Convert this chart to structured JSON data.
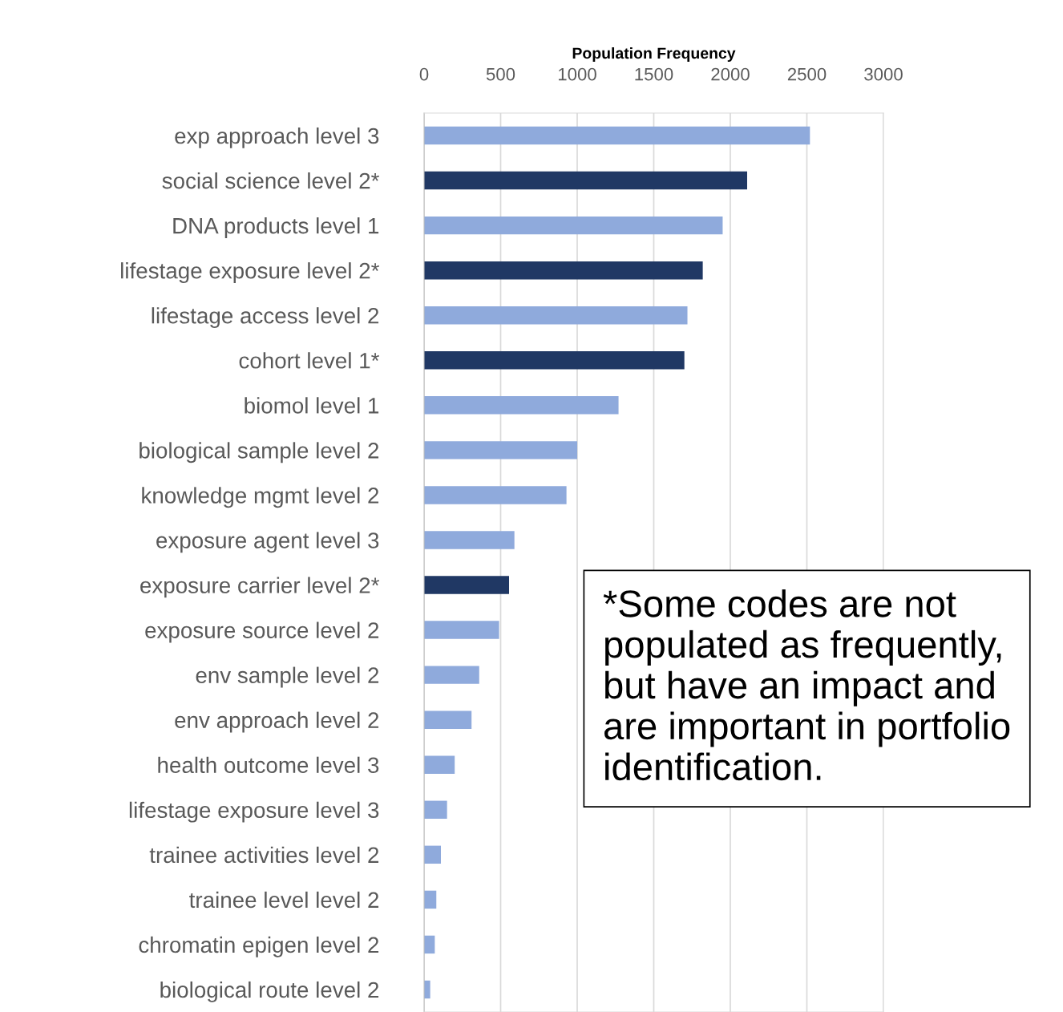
{
  "chart_data": {
    "type": "bar",
    "orientation": "horizontal",
    "xlabel": "Population Frequency",
    "categories": [
      "exp approach level 3",
      "social science level 2*",
      "DNA products level 1",
      "lifestage exposure level 2*",
      "lifestage access level 2",
      "cohort level 1*",
      "biomol level 1",
      "biological sample level 2",
      "knowledge mgmt level 2",
      "exposure agent level 3",
      "exposure carrier level 2*",
      "exposure source level 2",
      "env sample level 2",
      "env approach level 2",
      "health outcome level 3",
      "lifestage exposure level 3",
      "trainee activities level 2",
      "trainee level level 2",
      "chromatin epigen level 2",
      "biological route level 2"
    ],
    "values": [
      2520,
      2110,
      1950,
      1820,
      1720,
      1700,
      1270,
      1000,
      930,
      590,
      555,
      490,
      360,
      310,
      200,
      150,
      110,
      80,
      70,
      40
    ],
    "colors": [
      "#8faadc",
      "#203864",
      "#8faadc",
      "#203864",
      "#8faadc",
      "#203864",
      "#8faadc",
      "#8faadc",
      "#8faadc",
      "#8faadc",
      "#203864",
      "#8faadc",
      "#8faadc",
      "#8faadc",
      "#8faadc",
      "#8faadc",
      "#8faadc",
      "#8faadc",
      "#8faadc",
      "#8faadc"
    ],
    "xlim": [
      0,
      3000
    ],
    "xticks": [
      0,
      500,
      1000,
      1500,
      2000,
      2500,
      3000
    ],
    "grid": "x",
    "annotations": [
      "*Some codes are not populated as frequently, but have an impact and are important in portfolio identification."
    ]
  }
}
